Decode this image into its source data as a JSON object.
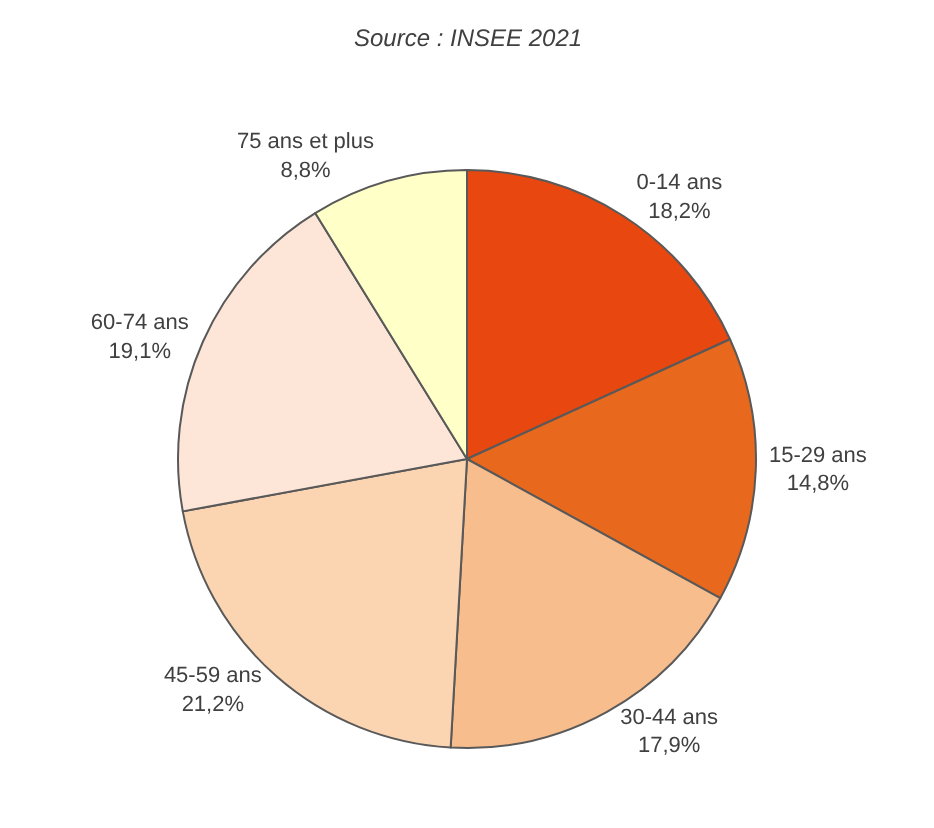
{
  "chart_data": {
    "type": "pie",
    "categories": [
      "0-14 ans",
      "15-29 ans",
      "30-44 ans",
      "45-59 ans",
      "60-74 ans",
      "75 ans et plus"
    ],
    "values": [
      18.2,
      14.8,
      17.9,
      21.2,
      19.1,
      8.8
    ],
    "value_labels": [
      "18,2%",
      "14,8%",
      "17,9%",
      "21,2%",
      "19,1%",
      "8,8%"
    ],
    "colors": [
      "#e8470f",
      "#e8681e",
      "#f8bd8c",
      "#fbd5b2",
      "#fde6d8",
      "#ffffc8"
    ],
    "annotations": [
      "Source : INSEE 2021"
    ],
    "legend": false
  }
}
